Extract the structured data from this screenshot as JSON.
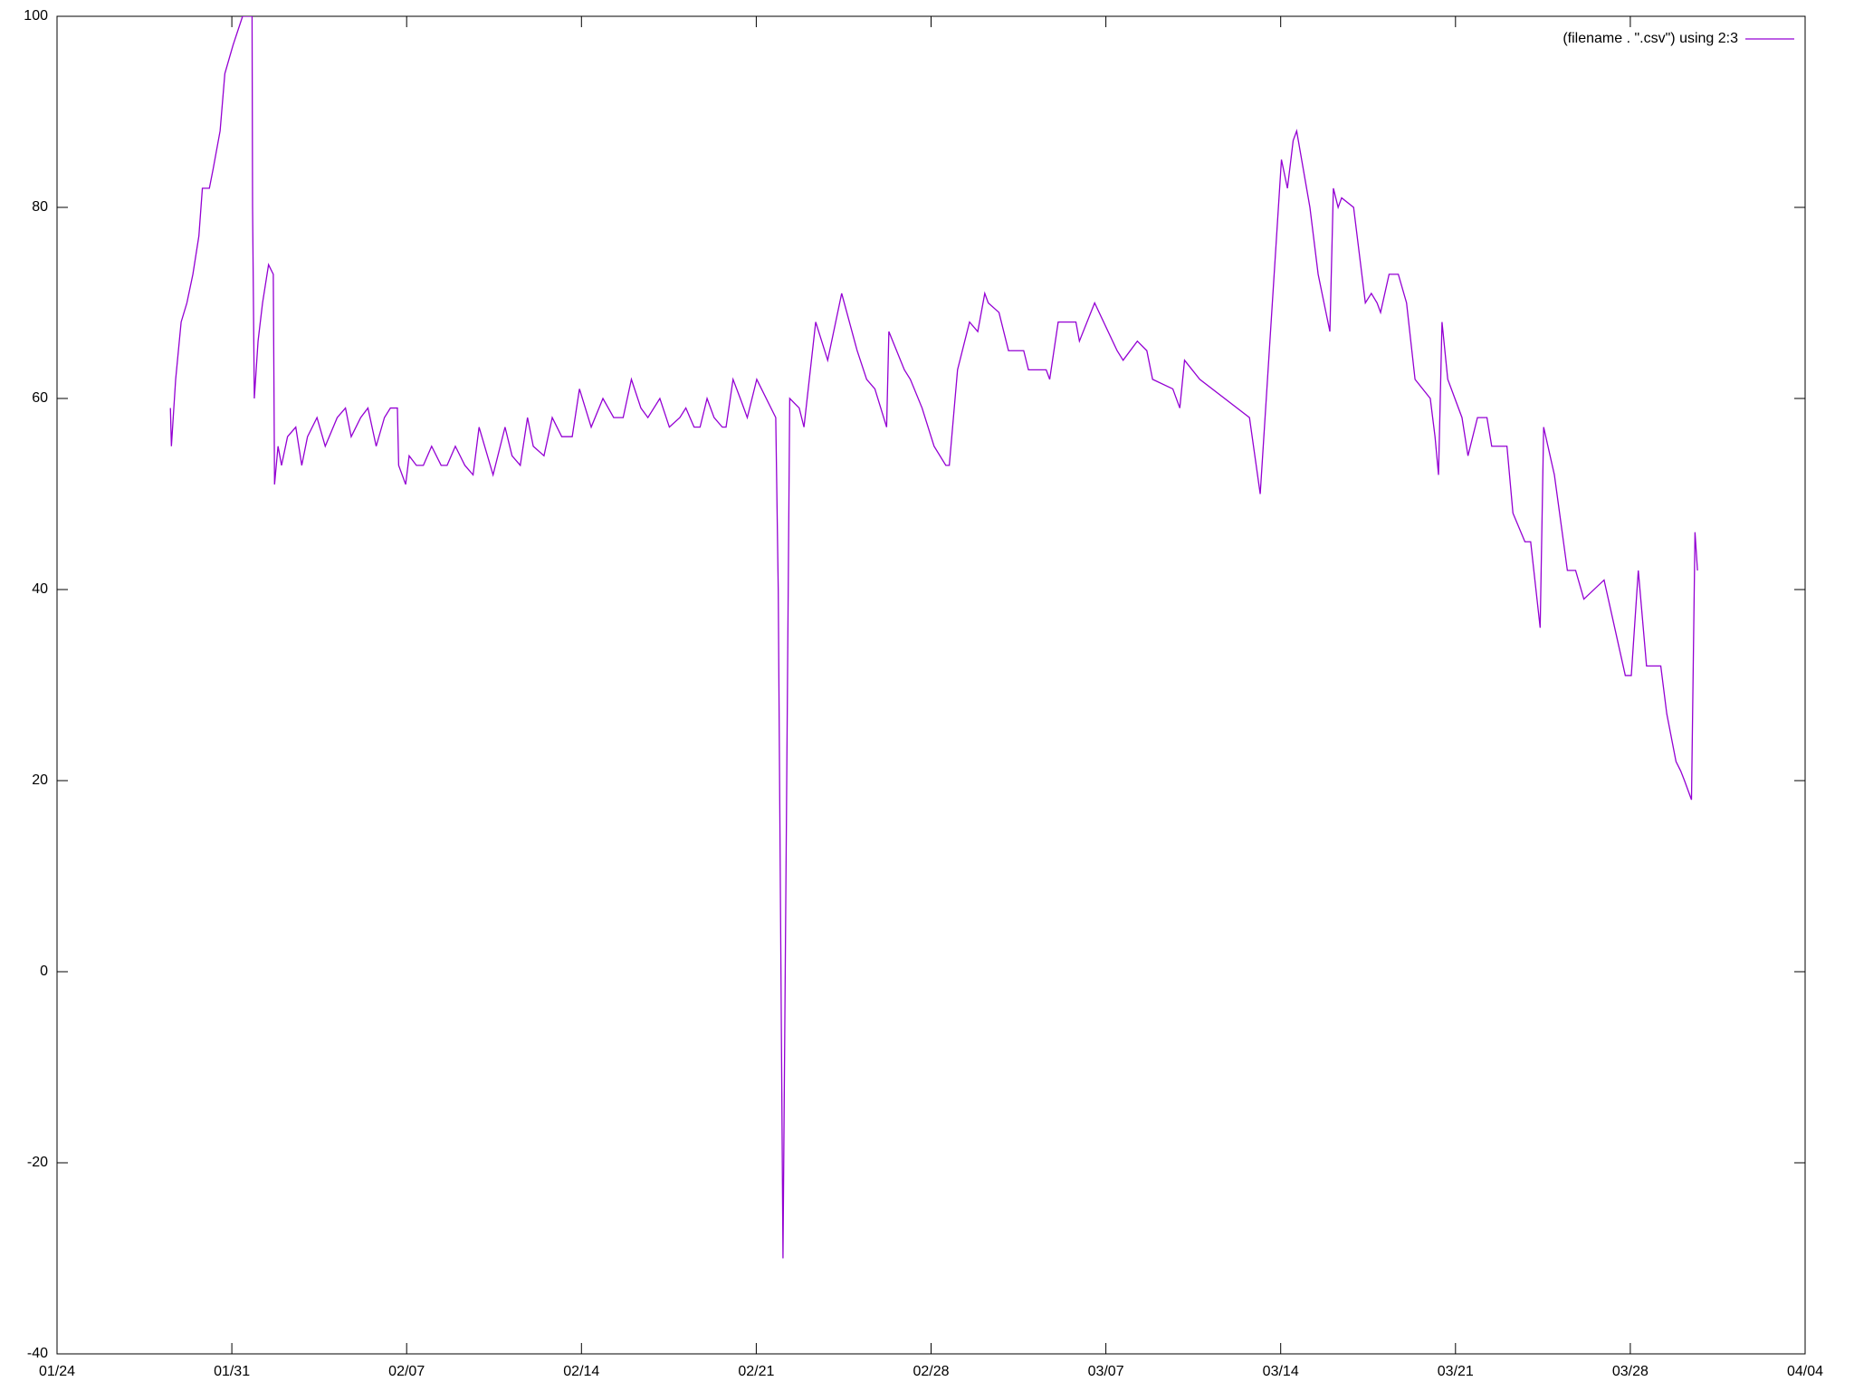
{
  "chart_data": {
    "type": "line",
    "xlim": [
      0,
      70
    ],
    "xticks": [
      {
        "value": 0,
        "label": "01/24"
      },
      {
        "value": 7,
        "label": "01/31"
      },
      {
        "value": 14,
        "label": "02/07"
      },
      {
        "value": 21,
        "label": "02/14"
      },
      {
        "value": 28,
        "label": "02/21"
      },
      {
        "value": 35,
        "label": "02/28"
      },
      {
        "value": 42,
        "label": "03/07"
      },
      {
        "value": 49,
        "label": "03/14"
      },
      {
        "value": 56,
        "label": "03/21"
      },
      {
        "value": 63,
        "label": "03/28"
      },
      {
        "value": 70,
        "label": "04/04"
      }
    ],
    "ylim": [
      -40,
      100
    ],
    "yticks": [
      -40,
      -20,
      0,
      20,
      40,
      60,
      80,
      100
    ],
    "legend": "top-right",
    "x": [
      4.54,
      4.58,
      4.75,
      4.97,
      5.2,
      5.44,
      5.68,
      5.82,
      6.1,
      6.25,
      6.53,
      6.72,
      7.05,
      7.43,
      7.81,
      7.83,
      7.9,
      8.05,
      8.23,
      8.47,
      8.66,
      8.71,
      8.85,
      8.99,
      9.23,
      9.56,
      9.8,
      10.03,
      10.41,
      10.74,
      11.22,
      11.55,
      11.78,
      12.16,
      12.45,
      12.78,
      13.11,
      13.35,
      13.63,
      13.68,
      13.96,
      14.1,
      14.39,
      14.67,
      15.0,
      15.38,
      15.62,
      15.95,
      16.33,
      16.66,
      16.9,
      17.46,
      17.94,
      18.22,
      18.55,
      18.84,
      19.07,
      19.5,
      19.83,
      20.21,
      20.63,
      20.92,
      21.39,
      21.86,
      22.29,
      22.67,
      23.0,
      23.38,
      23.66,
      24.14,
      24.52,
      24.94,
      25.18,
      25.51,
      25.75,
      26.03,
      26.31,
      26.64,
      26.79,
      27.07,
      27.36,
      27.64,
      28.02,
      28.78,
      28.88,
      29.07,
      29.34,
      29.72,
      29.91,
      30.38,
      30.86,
      31.42,
      32.04,
      32.42,
      32.75,
      33.22,
      33.31,
      33.93,
      34.17,
      34.64,
      35.12,
      35.59,
      35.73,
      36.06,
      36.54,
      36.87,
      37.15,
      37.29,
      37.72,
      38.1,
      38.71,
      38.9,
      39.61,
      39.75,
      40.09,
      40.8,
      40.94,
      41.55,
      42.45,
      42.69,
      43.26,
      43.64,
      43.87,
      44.68,
      44.96,
      45.15,
      45.76,
      47.75,
      48.18,
      49.03,
      49.27,
      49.5,
      49.64,
      50.17,
      50.5,
      50.97,
      51.11,
      51.3,
      51.44,
      51.92,
      52.39,
      52.63,
      52.86,
      53.0,
      53.34,
      53.71,
      54.04,
      54.38,
      54.99,
      55.18,
      55.32,
      55.46,
      55.69,
      56.26,
      56.5,
      56.88,
      57.26,
      57.45,
      58.06,
      58.3,
      58.78,
      59.01,
      59.39,
      59.53,
      59.96,
      60.48,
      60.81,
      61.14,
      61.95,
      62.8,
      63.04,
      63.32,
      63.65,
      64.22,
      64.46,
      64.83,
      65.02,
      65.17,
      65.45,
      65.59,
      65.69
    ],
    "series": [
      {
        "name": "(filename . \".csv\") using 2:3",
        "color": "#9400d3",
        "values": [
          59,
          55,
          62,
          68,
          70,
          73,
          77,
          82,
          82,
          84,
          88,
          94,
          97,
          100,
          100,
          80,
          60,
          66,
          70,
          74,
          73,
          51,
          55,
          53,
          56,
          57,
          53,
          56,
          58,
          55,
          58,
          59,
          56,
          58,
          59,
          55,
          58,
          59,
          59,
          53,
          51,
          54,
          53,
          53,
          55,
          53,
          53,
          55,
          53,
          52,
          57,
          52,
          57,
          54,
          53,
          58,
          55,
          54,
          58,
          56,
          56,
          61,
          57,
          60,
          58,
          58,
          62,
          59,
          58,
          60,
          57,
          58,
          59,
          57,
          57,
          60,
          58,
          57,
          57,
          62,
          60,
          58,
          62,
          58,
          40,
          -30,
          60,
          59,
          57,
          68,
          64,
          71,
          65,
          62,
          61,
          57,
          67,
          63,
          62,
          59,
          55,
          53,
          53,
          63,
          68,
          67,
          71,
          70,
          69,
          65,
          65,
          63,
          63,
          62,
          68,
          68,
          66,
          70,
          65,
          64,
          66,
          65,
          62,
          61,
          59,
          64,
          62,
          58,
          50,
          85,
          82,
          87,
          88,
          80,
          73,
          67,
          82,
          80,
          81,
          80,
          70,
          71,
          70,
          69,
          73,
          73,
          70,
          62,
          60,
          56,
          52,
          68,
          62,
          58,
          54,
          58,
          58,
          55,
          55,
          48,
          45,
          45,
          36,
          57,
          52,
          42,
          42,
          39,
          41,
          31,
          31,
          42,
          32,
          32,
          27,
          22,
          21,
          20,
          18,
          46,
          42
        ]
      }
    ]
  }
}
